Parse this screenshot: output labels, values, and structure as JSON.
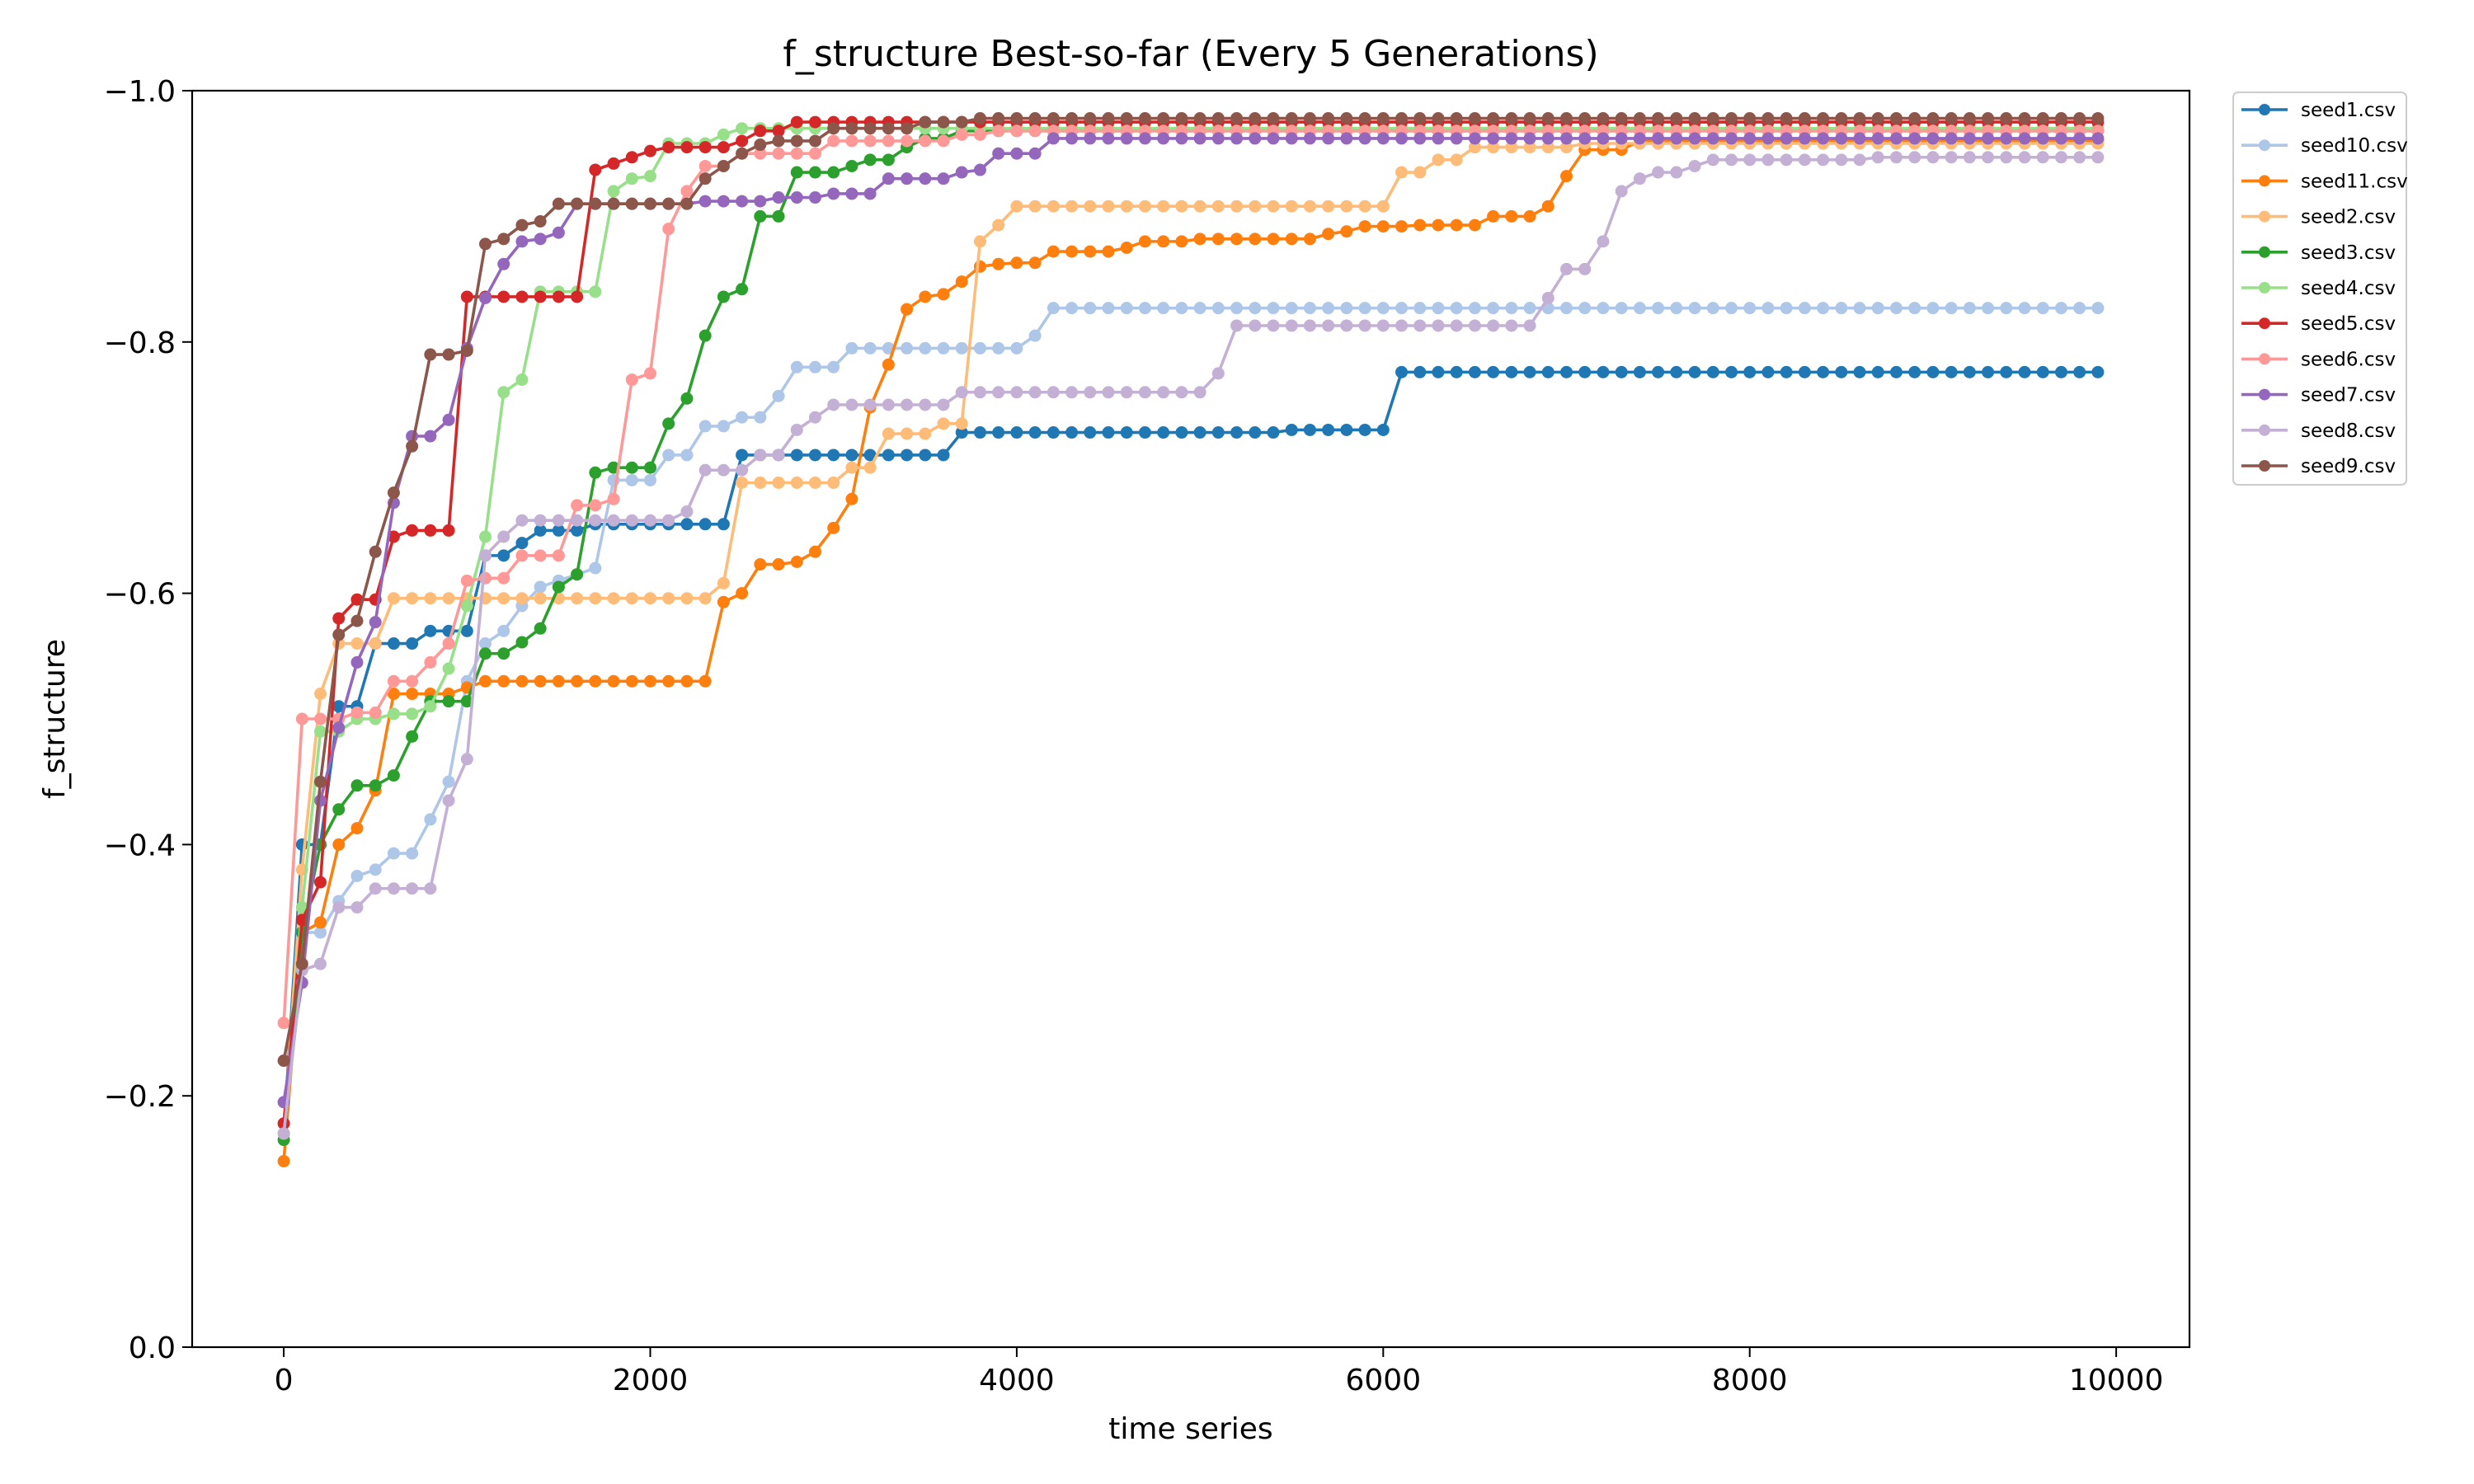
{
  "chart_data": {
    "type": "line",
    "title": "f_structure Best-so-far (Every 5 Generations)",
    "xlabel": "time series",
    "ylabel": "f_structure",
    "xlim": [
      -500,
      10400
    ],
    "ylim": [
      0.0,
      -1.0
    ],
    "y_axis_inverted": true,
    "x_ticks": [
      0,
      2000,
      4000,
      6000,
      8000,
      10000
    ],
    "x_tick_labels": [
      "0",
      "2000",
      "4000",
      "6000",
      "8000",
      "10000"
    ],
    "y_ticks": [
      0.0,
      -0.2,
      -0.4,
      -0.6,
      -0.8,
      -1.0
    ],
    "y_tick_labels": [
      "0.0",
      "−0.2",
      "−0.4",
      "−0.6",
      "−0.8",
      "−1.0"
    ],
    "grid": false,
    "legend_position": "outside-top-right",
    "x_sampling": {
      "start": 0,
      "end": 9900,
      "step": 100
    },
    "series": [
      {
        "name": "seed1.csv",
        "color": "#1f77b4",
        "steps": [
          [
            0,
            -0.17
          ],
          [
            100,
            -0.4
          ],
          [
            300,
            -0.51
          ],
          [
            500,
            -0.56
          ],
          [
            800,
            -0.57
          ],
          [
            1100,
            -0.63
          ],
          [
            1300,
            -0.64
          ],
          [
            1400,
            -0.65
          ],
          [
            1700,
            -0.655
          ],
          [
            2500,
            -0.71
          ],
          [
            3700,
            -0.728
          ],
          [
            5500,
            -0.73
          ],
          [
            6100,
            -0.776
          ]
        ]
      },
      {
        "name": "seed10.csv",
        "color": "#aec7e8",
        "steps": [
          [
            0,
            -0.17
          ],
          [
            100,
            -0.33
          ],
          [
            300,
            -0.355
          ],
          [
            400,
            -0.375
          ],
          [
            500,
            -0.38
          ],
          [
            600,
            -0.393
          ],
          [
            800,
            -0.42
          ],
          [
            900,
            -0.45
          ],
          [
            1000,
            -0.53
          ],
          [
            1100,
            -0.56
          ],
          [
            1200,
            -0.57
          ],
          [
            1300,
            -0.59
          ],
          [
            1400,
            -0.605
          ],
          [
            1500,
            -0.61
          ],
          [
            1600,
            -0.615
          ],
          [
            1700,
            -0.62
          ],
          [
            1800,
            -0.69
          ],
          [
            2100,
            -0.71
          ],
          [
            2300,
            -0.733
          ],
          [
            2500,
            -0.74
          ],
          [
            2700,
            -0.757
          ],
          [
            2800,
            -0.78
          ],
          [
            3000,
            -0.78
          ],
          [
            3100,
            -0.795
          ],
          [
            4000,
            -0.795
          ],
          [
            4100,
            -0.805
          ],
          [
            4200,
            -0.827
          ]
        ]
      },
      {
        "name": "seed11.csv",
        "color": "#ff7f0e",
        "steps": [
          [
            0,
            -0.148
          ],
          [
            100,
            -0.33
          ],
          [
            200,
            -0.338
          ],
          [
            300,
            -0.4
          ],
          [
            400,
            -0.413
          ],
          [
            500,
            -0.443
          ],
          [
            600,
            -0.52
          ],
          [
            1000,
            -0.525
          ],
          [
            1100,
            -0.53
          ],
          [
            2400,
            -0.593
          ],
          [
            2500,
            -0.6
          ],
          [
            2600,
            -0.623
          ],
          [
            2800,
            -0.625
          ],
          [
            2900,
            -0.633
          ],
          [
            3000,
            -0.652
          ],
          [
            3100,
            -0.675
          ],
          [
            3200,
            -0.748
          ],
          [
            3300,
            -0.782
          ],
          [
            3400,
            -0.826
          ],
          [
            3500,
            -0.836
          ],
          [
            3600,
            -0.838
          ],
          [
            3700,
            -0.848
          ],
          [
            3800,
            -0.86
          ],
          [
            3900,
            -0.862
          ],
          [
            4000,
            -0.863
          ],
          [
            4200,
            -0.872
          ],
          [
            4600,
            -0.875
          ],
          [
            4700,
            -0.88
          ],
          [
            5000,
            -0.882
          ],
          [
            5700,
            -0.886
          ],
          [
            5800,
            -0.888
          ],
          [
            5900,
            -0.892
          ],
          [
            6200,
            -0.893
          ],
          [
            6600,
            -0.9
          ],
          [
            6900,
            -0.908
          ],
          [
            7000,
            -0.932
          ],
          [
            7100,
            -0.953
          ],
          [
            7400,
            -0.96
          ]
        ]
      },
      {
        "name": "seed2.csv",
        "color": "#ffbb78",
        "steps": [
          [
            0,
            -0.17
          ],
          [
            100,
            -0.38
          ],
          [
            200,
            -0.52
          ],
          [
            300,
            -0.56
          ],
          [
            600,
            -0.596
          ],
          [
            2400,
            -0.608
          ],
          [
            2500,
            -0.688
          ],
          [
            3100,
            -0.7
          ],
          [
            3300,
            -0.727
          ],
          [
            3600,
            -0.735
          ],
          [
            3800,
            -0.88
          ],
          [
            3900,
            -0.893
          ],
          [
            4000,
            -0.908
          ],
          [
            6100,
            -0.935
          ],
          [
            6300,
            -0.945
          ],
          [
            6500,
            -0.955
          ],
          [
            7100,
            -0.958
          ]
        ]
      },
      {
        "name": "seed3.csv",
        "color": "#2ca02c",
        "steps": [
          [
            0,
            -0.165
          ],
          [
            100,
            -0.33
          ],
          [
            200,
            -0.4
          ],
          [
            300,
            -0.428
          ],
          [
            400,
            -0.447
          ],
          [
            600,
            -0.455
          ],
          [
            700,
            -0.486
          ],
          [
            800,
            -0.514
          ],
          [
            1100,
            -0.552
          ],
          [
            1300,
            -0.561
          ],
          [
            1400,
            -0.572
          ],
          [
            1500,
            -0.605
          ],
          [
            1600,
            -0.615
          ],
          [
            1700,
            -0.696
          ],
          [
            1800,
            -0.7
          ],
          [
            2100,
            -0.735
          ],
          [
            2200,
            -0.755
          ],
          [
            2300,
            -0.805
          ],
          [
            2400,
            -0.836
          ],
          [
            2500,
            -0.842
          ],
          [
            2600,
            -0.9
          ],
          [
            2800,
            -0.935
          ],
          [
            3100,
            -0.94
          ],
          [
            3200,
            -0.945
          ],
          [
            3400,
            -0.955
          ],
          [
            3500,
            -0.962
          ],
          [
            3700,
            -0.968
          ]
        ]
      },
      {
        "name": "seed4.csv",
        "color": "#98df8a",
        "steps": [
          [
            0,
            -0.17
          ],
          [
            100,
            -0.35
          ],
          [
            200,
            -0.49
          ],
          [
            400,
            -0.5
          ],
          [
            600,
            -0.504
          ],
          [
            800,
            -0.51
          ],
          [
            900,
            -0.54
          ],
          [
            1000,
            -0.59
          ],
          [
            1100,
            -0.645
          ],
          [
            1200,
            -0.76
          ],
          [
            1300,
            -0.77
          ],
          [
            1400,
            -0.84
          ],
          [
            1800,
            -0.92
          ],
          [
            1900,
            -0.93
          ],
          [
            2000,
            -0.932
          ],
          [
            2100,
            -0.958
          ],
          [
            2400,
            -0.965
          ],
          [
            2500,
            -0.97
          ],
          [
            2600,
            -0.97
          ]
        ]
      },
      {
        "name": "seed5.csv",
        "color": "#d62728",
        "steps": [
          [
            0,
            -0.178
          ],
          [
            100,
            -0.34
          ],
          [
            200,
            -0.37
          ],
          [
            300,
            -0.58
          ],
          [
            400,
            -0.595
          ],
          [
            600,
            -0.645
          ],
          [
            700,
            -0.65
          ],
          [
            1000,
            -0.836
          ],
          [
            1700,
            -0.937
          ],
          [
            1800,
            -0.942
          ],
          [
            1900,
            -0.947
          ],
          [
            2000,
            -0.952
          ],
          [
            2100,
            -0.955
          ],
          [
            2500,
            -0.96
          ],
          [
            2600,
            -0.968
          ],
          [
            2800,
            -0.975
          ]
        ]
      },
      {
        "name": "seed6.csv",
        "color": "#ff9896",
        "steps": [
          [
            0,
            -0.258
          ],
          [
            100,
            -0.5
          ],
          [
            400,
            -0.505
          ],
          [
            600,
            -0.53
          ],
          [
            800,
            -0.545
          ],
          [
            900,
            -0.56
          ],
          [
            1000,
            -0.61
          ],
          [
            1100,
            -0.612
          ],
          [
            1300,
            -0.63
          ],
          [
            1600,
            -0.67
          ],
          [
            1800,
            -0.675
          ],
          [
            1900,
            -0.77
          ],
          [
            2000,
            -0.775
          ],
          [
            2100,
            -0.89
          ],
          [
            2200,
            -0.92
          ],
          [
            2300,
            -0.94
          ],
          [
            2500,
            -0.95
          ],
          [
            3000,
            -0.96
          ],
          [
            3700,
            -0.965
          ],
          [
            3900,
            -0.968
          ]
        ]
      },
      {
        "name": "seed7.csv",
        "color": "#9467bd",
        "steps": [
          [
            0,
            -0.195
          ],
          [
            100,
            -0.29
          ],
          [
            200,
            -0.435
          ],
          [
            300,
            -0.493
          ],
          [
            400,
            -0.545
          ],
          [
            500,
            -0.577
          ],
          [
            600,
            -0.672
          ],
          [
            700,
            -0.725
          ],
          [
            900,
            -0.738
          ],
          [
            1000,
            -0.795
          ],
          [
            1100,
            -0.835
          ],
          [
            1200,
            -0.862
          ],
          [
            1300,
            -0.88
          ],
          [
            1400,
            -0.882
          ],
          [
            1500,
            -0.887
          ],
          [
            1600,
            -0.91
          ],
          [
            2300,
            -0.912
          ],
          [
            2700,
            -0.915
          ],
          [
            3000,
            -0.918
          ],
          [
            3300,
            -0.93
          ],
          [
            3700,
            -0.935
          ],
          [
            3800,
            -0.937
          ],
          [
            3900,
            -0.95
          ],
          [
            4200,
            -0.962
          ]
        ]
      },
      {
        "name": "seed8.csv",
        "color": "#c5b0d5",
        "steps": [
          [
            0,
            -0.17
          ],
          [
            100,
            -0.3
          ],
          [
            200,
            -0.305
          ],
          [
            300,
            -0.35
          ],
          [
            500,
            -0.365
          ],
          [
            900,
            -0.435
          ],
          [
            1000,
            -0.468
          ],
          [
            1100,
            -0.63
          ],
          [
            1200,
            -0.645
          ],
          [
            1300,
            -0.658
          ],
          [
            2200,
            -0.665
          ],
          [
            2300,
            -0.698
          ],
          [
            2600,
            -0.71
          ],
          [
            2800,
            -0.73
          ],
          [
            2900,
            -0.74
          ],
          [
            3000,
            -0.75
          ],
          [
            3700,
            -0.76
          ],
          [
            5100,
            -0.775
          ],
          [
            5200,
            -0.813
          ],
          [
            6900,
            -0.835
          ],
          [
            7000,
            -0.858
          ],
          [
            7200,
            -0.88
          ],
          [
            7300,
            -0.92
          ],
          [
            7400,
            -0.93
          ],
          [
            7500,
            -0.935
          ],
          [
            7700,
            -0.94
          ],
          [
            7800,
            -0.945
          ],
          [
            8700,
            -0.947
          ]
        ]
      },
      {
        "name": "seed9.csv",
        "color": "#8c564b",
        "steps": [
          [
            0,
            -0.228
          ],
          [
            100,
            -0.305
          ],
          [
            200,
            -0.45
          ],
          [
            300,
            -0.567
          ],
          [
            400,
            -0.578
          ],
          [
            500,
            -0.633
          ],
          [
            600,
            -0.68
          ],
          [
            700,
            -0.717
          ],
          [
            800,
            -0.79
          ],
          [
            1000,
            -0.793
          ],
          [
            1100,
            -0.878
          ],
          [
            1200,
            -0.882
          ],
          [
            1300,
            -0.893
          ],
          [
            1400,
            -0.896
          ],
          [
            1500,
            -0.91
          ],
          [
            2300,
            -0.93
          ],
          [
            2400,
            -0.94
          ],
          [
            2500,
            -0.95
          ],
          [
            2600,
            -0.957
          ],
          [
            2700,
            -0.96
          ],
          [
            3000,
            -0.97
          ],
          [
            3500,
            -0.975
          ],
          [
            3800,
            -0.978
          ]
        ]
      }
    ]
  }
}
